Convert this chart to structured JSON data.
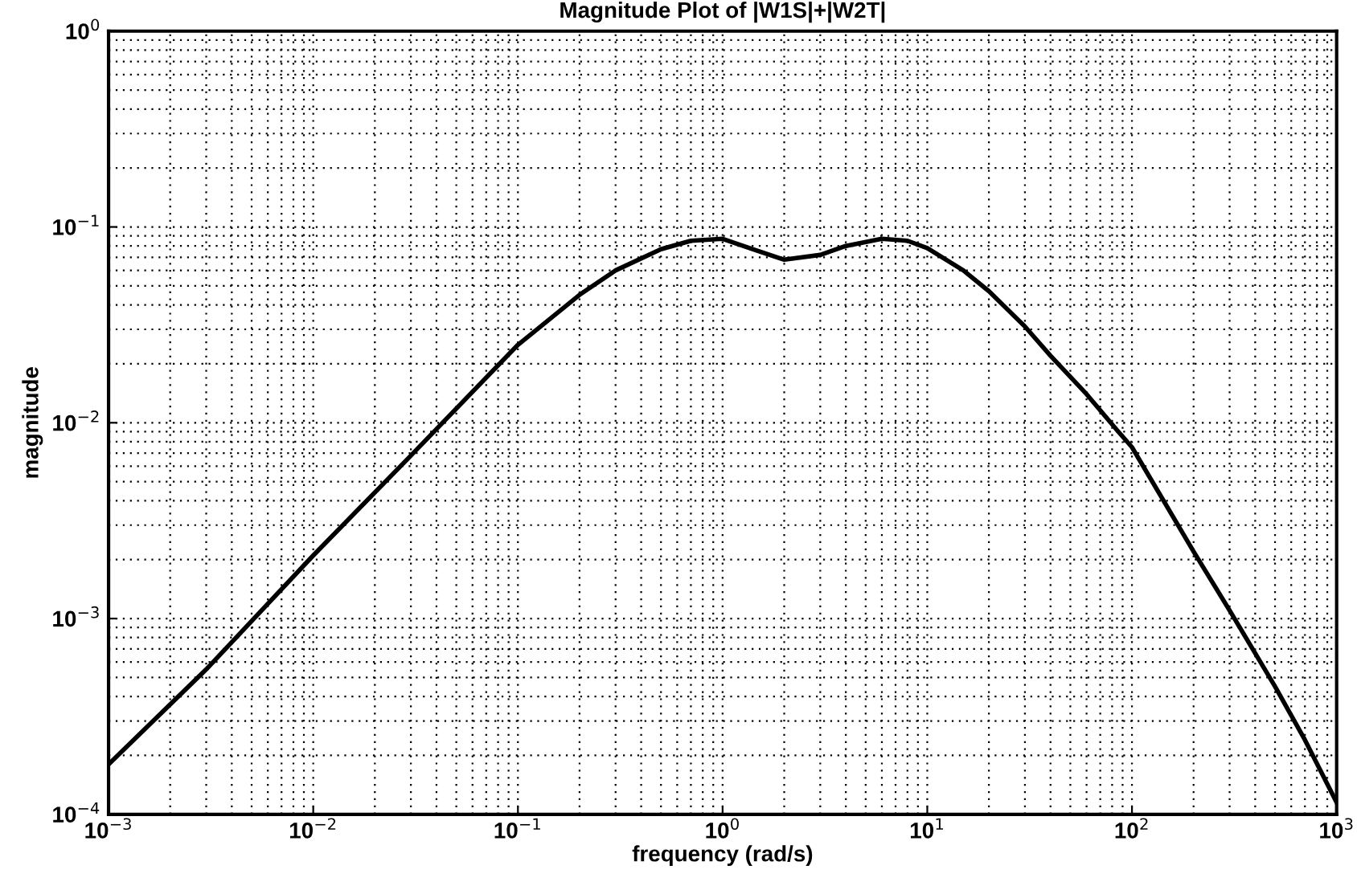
{
  "chart_data": {
    "type": "line",
    "title": "Magnitude Plot of |W1S|+|W2T|",
    "xlabel": "frequency (rad/s)",
    "ylabel": "magnitude",
    "log": "xy",
    "grid": true,
    "marker": "none",
    "line_style": "solid",
    "xlim": [
      0.001,
      1000
    ],
    "ylim": [
      0.0001,
      1
    ],
    "xticks": [
      {
        "value": 0.001,
        "label": "10$^{−3}$"
      },
      {
        "value": 0.01,
        "label": "10$^{−2}$"
      },
      {
        "value": 0.1,
        "label": "10$^{−1}$"
      },
      {
        "value": 1,
        "label": "10$^{0}$"
      },
      {
        "value": 10,
        "label": "10$^{1}$"
      },
      {
        "value": 100,
        "label": "10$^{2}$"
      },
      {
        "value": 1000,
        "label": "10$^{3}$"
      }
    ],
    "yticks": [
      {
        "value": 0.0001,
        "label": "10$^{−4}$"
      },
      {
        "value": 0.001,
        "label": "10$^{−3}$"
      },
      {
        "value": 0.01,
        "label": "10$^{−2}$"
      },
      {
        "value": 0.1,
        "label": "10$^{−1}$"
      },
      {
        "value": 1,
        "label": "10$^{0}$"
      }
    ],
    "series": [
      {
        "color": "#000000",
        "x": [
          0.001,
          0.003,
          0.01,
          0.03,
          0.1,
          0.2,
          0.3,
          0.5,
          0.7,
          1,
          1.4,
          2,
          3,
          4,
          6,
          8,
          10,
          15,
          20,
          30,
          40,
          60,
          85,
          100,
          200,
          300,
          500,
          700,
          1000
        ],
        "values": [
          0.00018,
          0.00055,
          0.0021,
          0.0068,
          0.025,
          0.045,
          0.06,
          0.077,
          0.085,
          0.087,
          0.077,
          0.068,
          0.072,
          0.08,
          0.087,
          0.085,
          0.078,
          0.06,
          0.047,
          0.031,
          0.022,
          0.014,
          0.0091,
          0.0075,
          0.0022,
          0.0011,
          0.00045,
          0.00024,
          0.000115
        ]
      }
    ]
  }
}
